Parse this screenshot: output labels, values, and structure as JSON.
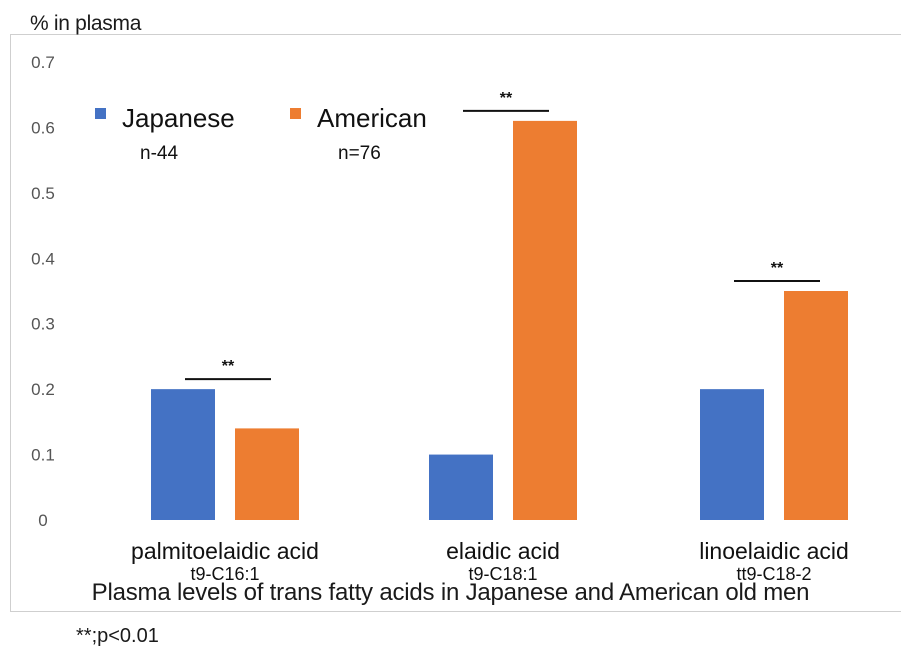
{
  "chart_data": {
    "type": "bar",
    "title": "Plasma levels of trans fatty acids in Japanese and American old men",
    "ylabel": "% in plasma",
    "xlabel": "",
    "ylim": [
      0,
      0.7
    ],
    "yticks": [
      "0",
      "0.1",
      "0.2",
      "0.3",
      "0.4",
      "0.5",
      "0.6",
      "0.7"
    ],
    "grid": false,
    "legend_position": "top-left",
    "categories": [
      "palmitoelaidic acid",
      "elaidic acid",
      "linoelaidic acid"
    ],
    "category_sublabels": [
      "t9-C16:1",
      "t9-C18:1",
      "tt9-C18-2"
    ],
    "series": [
      {
        "name": "Japanese",
        "note": "n-44",
        "color": "#4472c4",
        "values": [
          0.2,
          0.1,
          0.2
        ]
      },
      {
        "name": "American",
        "note": "n=76",
        "color": "#ed7d31",
        "values": [
          0.14,
          0.61,
          0.35
        ]
      }
    ],
    "significance": [
      "**",
      "**",
      "**"
    ],
    "footnote": "**;p<0.01"
  }
}
